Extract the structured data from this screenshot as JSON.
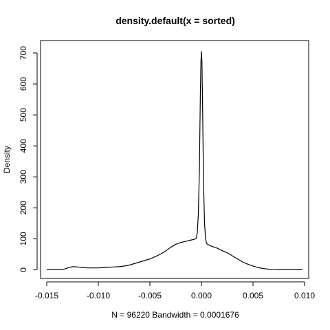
{
  "chart_data": {
    "type": "line",
    "title": "density.default(x = sorted)",
    "xlabel": "N = 96220   Bandwidth = 0.0001676",
    "ylabel": "Density",
    "xlim": [
      -0.0156,
      0.0104
    ],
    "ylim": [
      -28,
      740
    ],
    "x_ticks": [
      -0.015,
      -0.01,
      -0.005,
      0.0,
      0.005,
      0.01
    ],
    "x_tick_labels": [
      "-0.015",
      "-0.010",
      "-0.005",
      "0.000",
      "0.005",
      "0.010"
    ],
    "y_ticks": [
      0,
      100,
      200,
      300,
      400,
      500,
      600,
      700
    ],
    "y_tick_labels": [
      "0",
      "100",
      "200",
      "300",
      "400",
      "500",
      "600",
      "700"
    ],
    "grid": false,
    "legend": "none",
    "series": [
      {
        "x": [
          -0.015,
          -0.014,
          -0.0133,
          -0.0128,
          -0.0124,
          -0.012,
          -0.0115,
          -0.011,
          -0.0105,
          -0.01,
          -0.0095,
          -0.009,
          -0.0085,
          -0.008,
          -0.0075,
          -0.007,
          -0.0065,
          -0.006,
          -0.0055,
          -0.005,
          -0.0045,
          -0.004,
          -0.0035,
          -0.003,
          -0.0025,
          -0.002,
          -0.0015,
          -0.001,
          -0.0007,
          -0.0005,
          -0.0004,
          -0.0003,
          -0.0002,
          -0.00015,
          -0.0001,
          -5e-05,
          0.0,
          5e-05,
          0.0001,
          0.00015,
          0.0002,
          0.0003,
          0.0004,
          0.0005,
          0.0007,
          0.001,
          0.0015,
          0.002,
          0.0025,
          0.003,
          0.0035,
          0.004,
          0.0045,
          0.005,
          0.0055,
          0.006,
          0.0065,
          0.007,
          0.0075,
          0.008,
          0.009,
          0.0098
        ],
        "y": [
          0,
          0,
          2,
          8,
          10,
          9,
          7,
          6,
          6,
          6,
          7,
          8,
          9,
          10,
          12,
          15,
          20,
          25,
          30,
          35,
          42,
          50,
          60,
          72,
          82,
          88,
          92,
          96,
          98,
          102,
          120,
          180,
          320,
          450,
          580,
          670,
          705,
          670,
          560,
          420,
          290,
          150,
          100,
          85,
          80,
          76,
          70,
          62,
          55,
          45,
          35,
          25,
          18,
          12,
          7,
          4,
          2,
          1,
          0.5,
          0.3,
          0,
          0
        ]
      }
    ]
  }
}
